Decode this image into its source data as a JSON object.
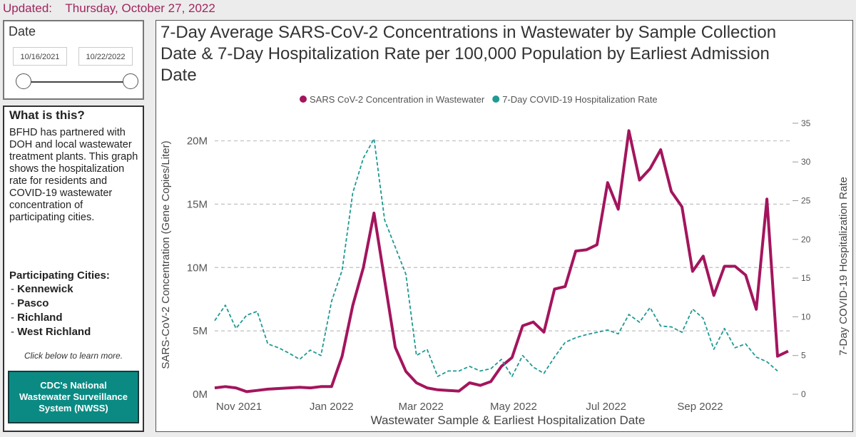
{
  "header": {
    "updated_label": "Updated:",
    "updated_date": "Thursday, October 27, 2022"
  },
  "date_filter": {
    "title": "Date",
    "start": "10/16/2021",
    "end": "10/22/2022"
  },
  "info": {
    "title": "What is this?",
    "description": "BFHD has partnered with DOH and local wastewater treatment plants. This graph shows the hospitalization rate for residents and COVID-19 wastewater concentration of participating cities.",
    "cities_label": "Participating Cities:",
    "cities": [
      "Kennewick",
      "Pasco",
      "Richland",
      "West Richland"
    ],
    "click_note": "Click below to learn more.",
    "button_label": "CDC's National Wastewater Surveillance System (NWSS)"
  },
  "chart_data": {
    "type": "line",
    "title": "7-Day Average SARS-CoV-2 Concentrations in Wastewater by Sample Collection Date & 7-Day Hospitalization Rate per 100,000 Population by Earliest Admission Date",
    "xlabel": "Wastewater Sample & Earliest Hospitalization Date",
    "ylabel": "SARS-CoV-2 Concentration (Gene Copies/Liter)",
    "y2label": "7-Day COVID-19 Hospitalization Rate",
    "x_ticks": [
      {
        "date": "2021-11-01",
        "label": "Nov 2021"
      },
      {
        "date": "2022-01-01",
        "label": "Jan 2022"
      },
      {
        "date": "2022-03-01",
        "label": "Mar 2022"
      },
      {
        "date": "2022-05-01",
        "label": "May 2022"
      },
      {
        "date": "2022-07-01",
        "label": "Jul 2022"
      },
      {
        "date": "2022-09-01",
        "label": "Sep 2022"
      }
    ],
    "xlim": [
      "2021-10-16",
      "2022-10-22"
    ],
    "ylim": [
      0,
      22000000
    ],
    "y_ticks": [
      {
        "v": 0,
        "label": "0M"
      },
      {
        "v": 5000000,
        "label": "5M"
      },
      {
        "v": 10000000,
        "label": "10M"
      },
      {
        "v": 15000000,
        "label": "15M"
      },
      {
        "v": 20000000,
        "label": "20M"
      }
    ],
    "y2lim": [
      0,
      36
    ],
    "y2_ticks": [
      0,
      5,
      10,
      15,
      20,
      25,
      30,
      35
    ],
    "legend_position": "top",
    "series": [
      {
        "name": "SARS CoV-2 Concentration in Wastewater",
        "axis": "left",
        "color": "#a3155d",
        "style": "solid",
        "points": [
          [
            "2021-10-16",
            500000
          ],
          [
            "2021-10-23",
            600000
          ],
          [
            "2021-10-30",
            500000
          ],
          [
            "2021-11-06",
            200000
          ],
          [
            "2021-11-13",
            300000
          ],
          [
            "2021-11-20",
            400000
          ],
          [
            "2021-11-27",
            450000
          ],
          [
            "2021-12-04",
            500000
          ],
          [
            "2021-12-11",
            550000
          ],
          [
            "2021-12-18",
            500000
          ],
          [
            "2021-12-25",
            600000
          ],
          [
            "2022-01-01",
            600000
          ],
          [
            "2022-01-08",
            3000000
          ],
          [
            "2022-01-15",
            7000000
          ],
          [
            "2022-01-22",
            10000000
          ],
          [
            "2022-01-29",
            14300000
          ],
          [
            "2022-02-05",
            9000000
          ],
          [
            "2022-02-12",
            3700000
          ],
          [
            "2022-02-19",
            1800000
          ],
          [
            "2022-02-26",
            900000
          ],
          [
            "2022-03-05",
            500000
          ],
          [
            "2022-03-12",
            350000
          ],
          [
            "2022-03-19",
            300000
          ],
          [
            "2022-03-26",
            250000
          ],
          [
            "2022-04-02",
            900000
          ],
          [
            "2022-04-09",
            700000
          ],
          [
            "2022-04-16",
            1000000
          ],
          [
            "2022-04-23",
            2200000
          ],
          [
            "2022-04-30",
            2900000
          ],
          [
            "2022-05-07",
            5400000
          ],
          [
            "2022-05-14",
            5700000
          ],
          [
            "2022-05-21",
            4900000
          ],
          [
            "2022-05-28",
            8300000
          ],
          [
            "2022-06-04",
            8500000
          ],
          [
            "2022-06-11",
            11300000
          ],
          [
            "2022-06-18",
            11400000
          ],
          [
            "2022-06-25",
            11800000
          ],
          [
            "2022-07-02",
            16700000
          ],
          [
            "2022-07-09",
            14600000
          ],
          [
            "2022-07-16",
            20800000
          ],
          [
            "2022-07-23",
            16900000
          ],
          [
            "2022-07-30",
            17800000
          ],
          [
            "2022-08-06",
            19300000
          ],
          [
            "2022-08-13",
            16000000
          ],
          [
            "2022-08-20",
            14800000
          ],
          [
            "2022-08-27",
            9700000
          ],
          [
            "2022-09-03",
            10900000
          ],
          [
            "2022-09-10",
            7800000
          ],
          [
            "2022-09-17",
            10100000
          ],
          [
            "2022-09-24",
            10100000
          ],
          [
            "2022-10-01",
            9400000
          ],
          [
            "2022-10-08",
            6700000
          ],
          [
            "2022-10-15",
            15400000
          ],
          [
            "2022-10-22",
            3000000
          ],
          [
            "2022-10-29",
            3400000
          ]
        ]
      },
      {
        "name": "7-Day COVID-19 Hospitalization Rate",
        "axis": "right",
        "color": "#1f9a94",
        "style": "dashed",
        "points": [
          [
            "2021-10-16",
            9.5
          ],
          [
            "2021-10-23",
            11.5
          ],
          [
            "2021-10-30",
            8.5
          ],
          [
            "2021-11-06",
            10.2
          ],
          [
            "2021-11-13",
            10.7
          ],
          [
            "2021-11-20",
            6.5
          ],
          [
            "2021-11-27",
            6.0
          ],
          [
            "2021-12-04",
            5.3
          ],
          [
            "2021-12-11",
            4.5
          ],
          [
            "2021-12-18",
            5.7
          ],
          [
            "2021-12-25",
            5.0
          ],
          [
            "2022-01-01",
            12.0
          ],
          [
            "2022-01-08",
            16.0
          ],
          [
            "2022-01-15",
            26.0
          ],
          [
            "2022-01-22",
            30.5
          ],
          [
            "2022-01-29",
            33.0
          ],
          [
            "2022-02-05",
            22.5
          ],
          [
            "2022-02-12",
            19.0
          ],
          [
            "2022-02-19",
            15.5
          ],
          [
            "2022-02-26",
            5.0
          ],
          [
            "2022-03-05",
            5.8
          ],
          [
            "2022-03-12",
            2.3
          ],
          [
            "2022-03-19",
            3.0
          ],
          [
            "2022-03-26",
            3.0
          ],
          [
            "2022-04-02",
            3.6
          ],
          [
            "2022-04-09",
            3.0
          ],
          [
            "2022-04-16",
            3.3
          ],
          [
            "2022-04-23",
            4.5
          ],
          [
            "2022-04-30",
            2.3
          ],
          [
            "2022-05-07",
            5.0
          ],
          [
            "2022-05-14",
            3.5
          ],
          [
            "2022-05-21",
            2.7
          ],
          [
            "2022-05-28",
            4.8
          ],
          [
            "2022-06-04",
            6.7
          ],
          [
            "2022-06-11",
            7.3
          ],
          [
            "2022-06-18",
            7.7
          ],
          [
            "2022-06-25",
            8.0
          ],
          [
            "2022-07-02",
            8.3
          ],
          [
            "2022-07-09",
            7.8
          ],
          [
            "2022-07-16",
            10.3
          ],
          [
            "2022-07-23",
            9.3
          ],
          [
            "2022-07-30",
            11.2
          ],
          [
            "2022-08-06",
            8.8
          ],
          [
            "2022-08-13",
            8.7
          ],
          [
            "2022-08-20",
            8.0
          ],
          [
            "2022-08-27",
            11.0
          ],
          [
            "2022-09-03",
            9.8
          ],
          [
            "2022-09-10",
            5.8
          ],
          [
            "2022-09-17",
            8.5
          ],
          [
            "2022-09-24",
            6.0
          ],
          [
            "2022-10-01",
            6.5
          ],
          [
            "2022-10-08",
            4.8
          ],
          [
            "2022-10-15",
            4.2
          ],
          [
            "2022-10-22",
            3.0
          ]
        ]
      }
    ]
  }
}
